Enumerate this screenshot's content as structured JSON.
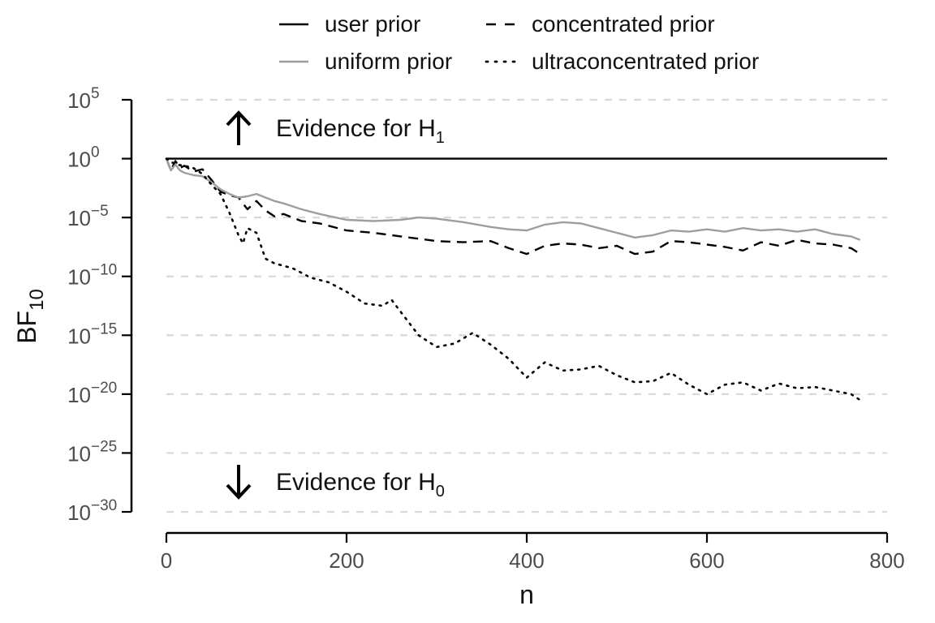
{
  "chart_data": {
    "type": "line",
    "xlabel": "n",
    "ylabel": "BF",
    "ylabel_sub": "10",
    "xlim": [
      0,
      800
    ],
    "ylim_log10": [
      -30,
      5
    ],
    "y_scale": "log10",
    "x_ticks": [
      "0",
      "200",
      "400",
      "600",
      "800"
    ],
    "y_ticks": [
      {
        "base": "10",
        "exp": "5"
      },
      {
        "base": "10",
        "exp": "0"
      },
      {
        "base": "10",
        "exp": "−5"
      },
      {
        "base": "10",
        "exp": "−10"
      },
      {
        "base": "10",
        "exp": "−15"
      },
      {
        "base": "10",
        "exp": "−20"
      },
      {
        "base": "10",
        "exp": "−25"
      },
      {
        "base": "10",
        "exp": "−30"
      }
    ],
    "grid": "horizontal dashed at major ticks",
    "legend_position": "top",
    "annotations": [
      {
        "text": "Evidence for H",
        "sub": "1",
        "arrow": "up"
      },
      {
        "text": "Evidence for H",
        "sub": "0",
        "arrow": "down"
      }
    ],
    "series": [
      {
        "name": "user prior",
        "style": "solid",
        "color": "#000000",
        "x": [
          0,
          800
        ],
        "log10_bf": [
          0,
          0
        ]
      },
      {
        "name": "concentrated prior",
        "style": "dashed",
        "color": "#000000",
        "x": [
          0,
          5,
          10,
          15,
          20,
          30,
          40,
          50,
          60,
          70,
          80,
          90,
          100,
          110,
          120,
          130,
          150,
          170,
          200,
          230,
          260,
          280,
          300,
          330,
          360,
          380,
          400,
          420,
          440,
          460,
          480,
          500,
          520,
          540,
          560,
          580,
          600,
          620,
          640,
          660,
          680,
          700,
          720,
          740,
          760,
          770
        ],
        "log10_bf": [
          0,
          -1,
          -0.2,
          -0.8,
          -0.6,
          -1.1,
          -0.9,
          -1.8,
          -2.8,
          -3.1,
          -3.3,
          -4.3,
          -3.6,
          -4.4,
          -4.9,
          -4.7,
          -5.3,
          -5.5,
          -6.1,
          -6.3,
          -6.6,
          -6.8,
          -7.0,
          -7.1,
          -7.0,
          -7.6,
          -8.1,
          -7.4,
          -7.2,
          -7.3,
          -7.6,
          -7.4,
          -8.1,
          -7.9,
          -7.0,
          -7.1,
          -7.3,
          -7.5,
          -7.8,
          -7.1,
          -7.4,
          -6.9,
          -7.2,
          -7.3,
          -7.6,
          -8.1
        ]
      },
      {
        "name": "uniform prior",
        "style": "solid",
        "color": "#9e9e9e",
        "x": [
          0,
          5,
          10,
          15,
          20,
          30,
          40,
          50,
          60,
          70,
          80,
          90,
          100,
          110,
          120,
          130,
          150,
          170,
          200,
          230,
          260,
          280,
          300,
          330,
          360,
          380,
          400,
          420,
          440,
          460,
          480,
          500,
          520,
          540,
          560,
          580,
          600,
          620,
          640,
          660,
          680,
          700,
          720,
          740,
          760,
          770
        ],
        "log10_bf": [
          0,
          -1,
          -0.5,
          -1.0,
          -1.2,
          -1.4,
          -1.5,
          -2.0,
          -2.6,
          -3.0,
          -3.3,
          -3.2,
          -3.0,
          -3.3,
          -3.6,
          -3.8,
          -4.3,
          -4.7,
          -5.2,
          -5.3,
          -5.2,
          -5.0,
          -5.1,
          -5.4,
          -5.8,
          -6.0,
          -6.1,
          -5.6,
          -5.4,
          -5.5,
          -5.9,
          -6.3,
          -6.7,
          -6.5,
          -6.1,
          -6.2,
          -6.0,
          -6.2,
          -5.9,
          -6.1,
          -6.0,
          -6.2,
          -6.0,
          -6.4,
          -6.6,
          -6.9
        ]
      },
      {
        "name": "ultraconcentrated prior",
        "style": "dotted",
        "color": "#000000",
        "x": [
          0,
          10,
          20,
          30,
          40,
          50,
          60,
          70,
          80,
          85,
          90,
          100,
          110,
          120,
          140,
          160,
          180,
          200,
          220,
          240,
          250,
          260,
          280,
          300,
          320,
          340,
          360,
          380,
          400,
          420,
          440,
          460,
          480,
          500,
          520,
          540,
          560,
          580,
          600,
          620,
          640,
          660,
          680,
          700,
          720,
          740,
          760,
          770
        ],
        "log10_bf": [
          0,
          -0.5,
          -0.6,
          -0.8,
          -1.3,
          -2.2,
          -3.0,
          -4.6,
          -6.5,
          -7.2,
          -5.9,
          -6.3,
          -8.5,
          -8.9,
          -9.3,
          -10.1,
          -10.5,
          -11.3,
          -12.3,
          -12.5,
          -12.0,
          -13.0,
          -15.0,
          -16.0,
          -15.7,
          -14.8,
          -15.8,
          -17.0,
          -18.6,
          -17.3,
          -18.0,
          -17.9,
          -17.6,
          -18.4,
          -19.0,
          -18.9,
          -18.2,
          -19.2,
          -20.0,
          -19.2,
          -19.0,
          -19.7,
          -19.1,
          -19.5,
          -19.4,
          -19.7,
          -20.0,
          -20.5
        ]
      }
    ]
  }
}
